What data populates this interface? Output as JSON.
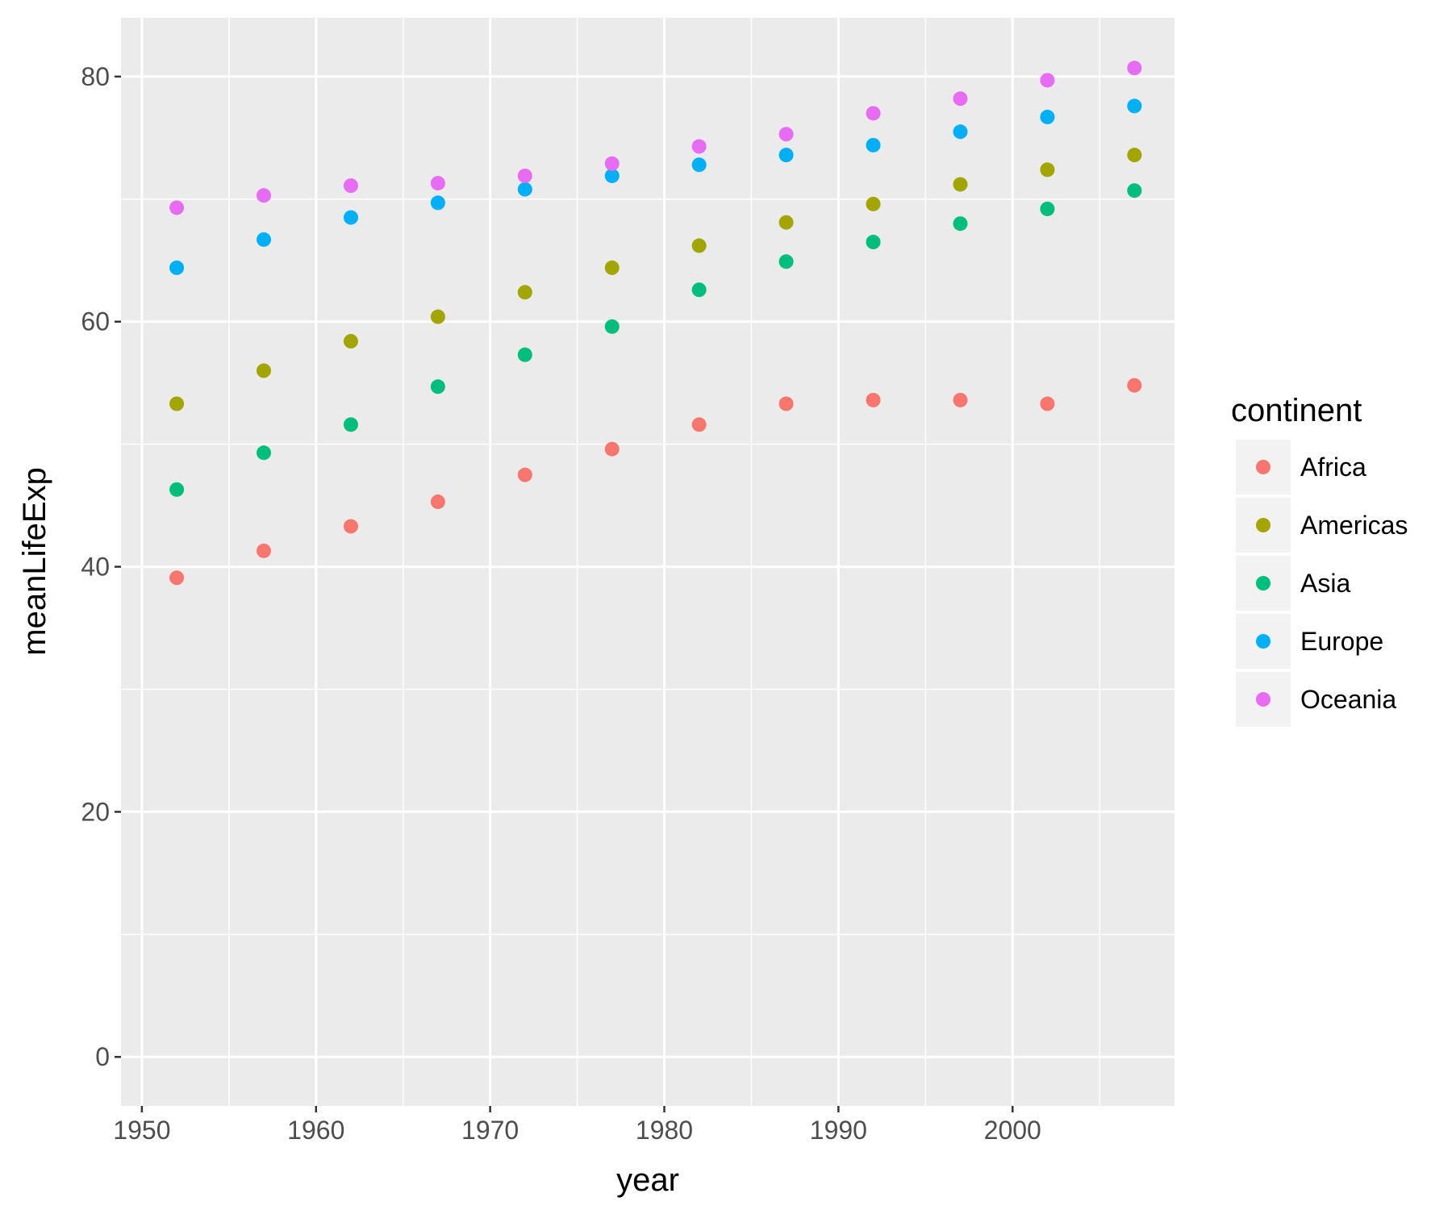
{
  "chart_data": {
    "type": "scatter",
    "title": "",
    "xlabel": "year",
    "ylabel": "meanLifeExp",
    "x": [
      1952,
      1957,
      1962,
      1967,
      1972,
      1977,
      1982,
      1987,
      1992,
      1997,
      2002,
      2007
    ],
    "xlim": [
      1948.8,
      2009.3
    ],
    "ylim": [
      -4.0,
      84.8
    ],
    "x_ticks": [
      1950,
      1960,
      1970,
      1980,
      1990,
      2000
    ],
    "y_ticks": [
      0,
      20,
      40,
      60,
      80
    ],
    "grid": true,
    "legend": {
      "title": "continent",
      "position": "right"
    },
    "series": [
      {
        "name": "Africa",
        "color": "#F8766D",
        "values": [
          39.1,
          41.3,
          43.3,
          45.3,
          47.5,
          49.6,
          51.6,
          53.3,
          53.6,
          53.6,
          53.3,
          54.8
        ]
      },
      {
        "name": "Americas",
        "color": "#A3A500",
        "values": [
          53.3,
          56.0,
          58.4,
          60.4,
          62.4,
          64.4,
          66.2,
          68.1,
          69.6,
          71.2,
          72.4,
          73.6
        ]
      },
      {
        "name": "Asia",
        "color": "#00BF7D",
        "values": [
          46.3,
          49.3,
          51.6,
          54.7,
          57.3,
          59.6,
          62.6,
          64.9,
          66.5,
          68.0,
          69.2,
          70.7
        ]
      },
      {
        "name": "Europe",
        "color": "#00B0F6",
        "values": [
          64.4,
          66.7,
          68.5,
          69.7,
          70.8,
          71.9,
          72.8,
          73.6,
          74.4,
          75.5,
          76.7,
          77.6
        ]
      },
      {
        "name": "Oceania",
        "color": "#E76BF3",
        "values": [
          69.3,
          70.3,
          71.1,
          71.3,
          71.9,
          72.9,
          74.3,
          75.3,
          77.0,
          78.2,
          79.7,
          80.7
        ]
      }
    ]
  }
}
